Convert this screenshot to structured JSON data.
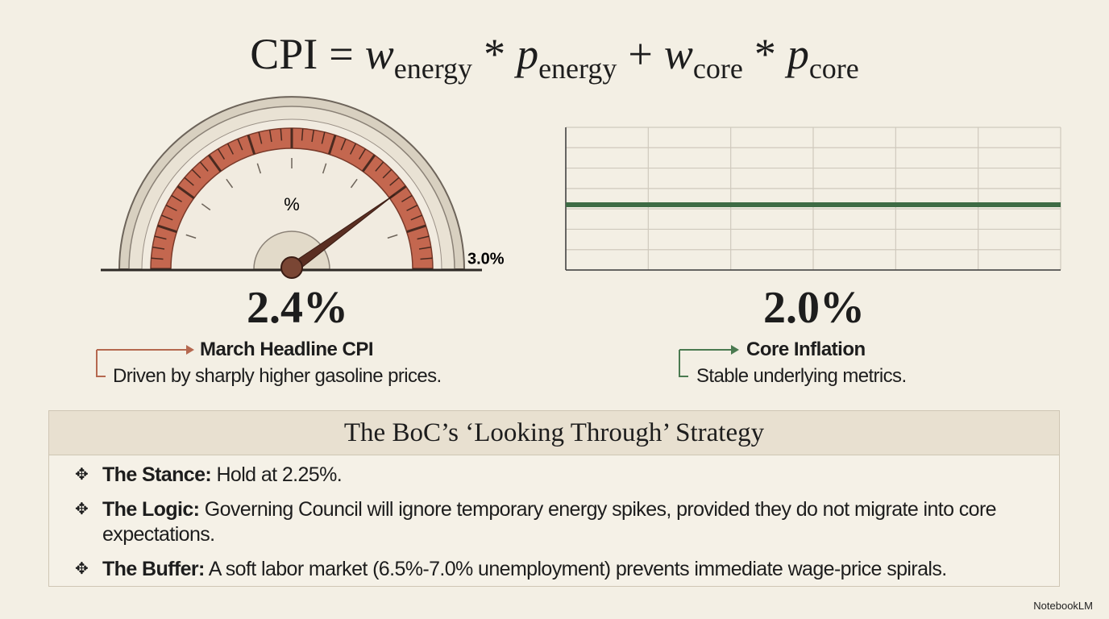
{
  "formula": {
    "parts": [
      "CPI",
      "=",
      "w",
      "energy",
      "*",
      "p",
      "energy",
      "+",
      "w",
      "core",
      "*",
      "p",
      "core"
    ]
  },
  "gauge": {
    "unit": "%",
    "reading": {
      "value": 2.4,
      "label": "2.4%"
    },
    "max": {
      "value": 3.0,
      "label": "3.0%"
    },
    "title": "March Headline CPI",
    "description": "Driven by sharply higher gasoline prices."
  },
  "core": {
    "reading": "2.0%",
    "title": "Core Inflation",
    "description": "Stable underlying metrics."
  },
  "strategy": {
    "title": "The BoC’s ‘Looking Through’ Strategy",
    "bullets": [
      {
        "icon": "✥",
        "label": "The Stance:",
        "text": "Hold at 2.25%."
      },
      {
        "icon": "✥",
        "label": "The Logic:",
        "text": "Governing Council will ignore temporary energy spikes, provided they do not migrate into core expectations."
      },
      {
        "icon": "✥",
        "label": "The Buffer:",
        "text": "A soft labor market (6.5%-7.0% unemployment) prevents immediate wage-price spirals."
      }
    ]
  },
  "footer": "NotebookLM"
}
